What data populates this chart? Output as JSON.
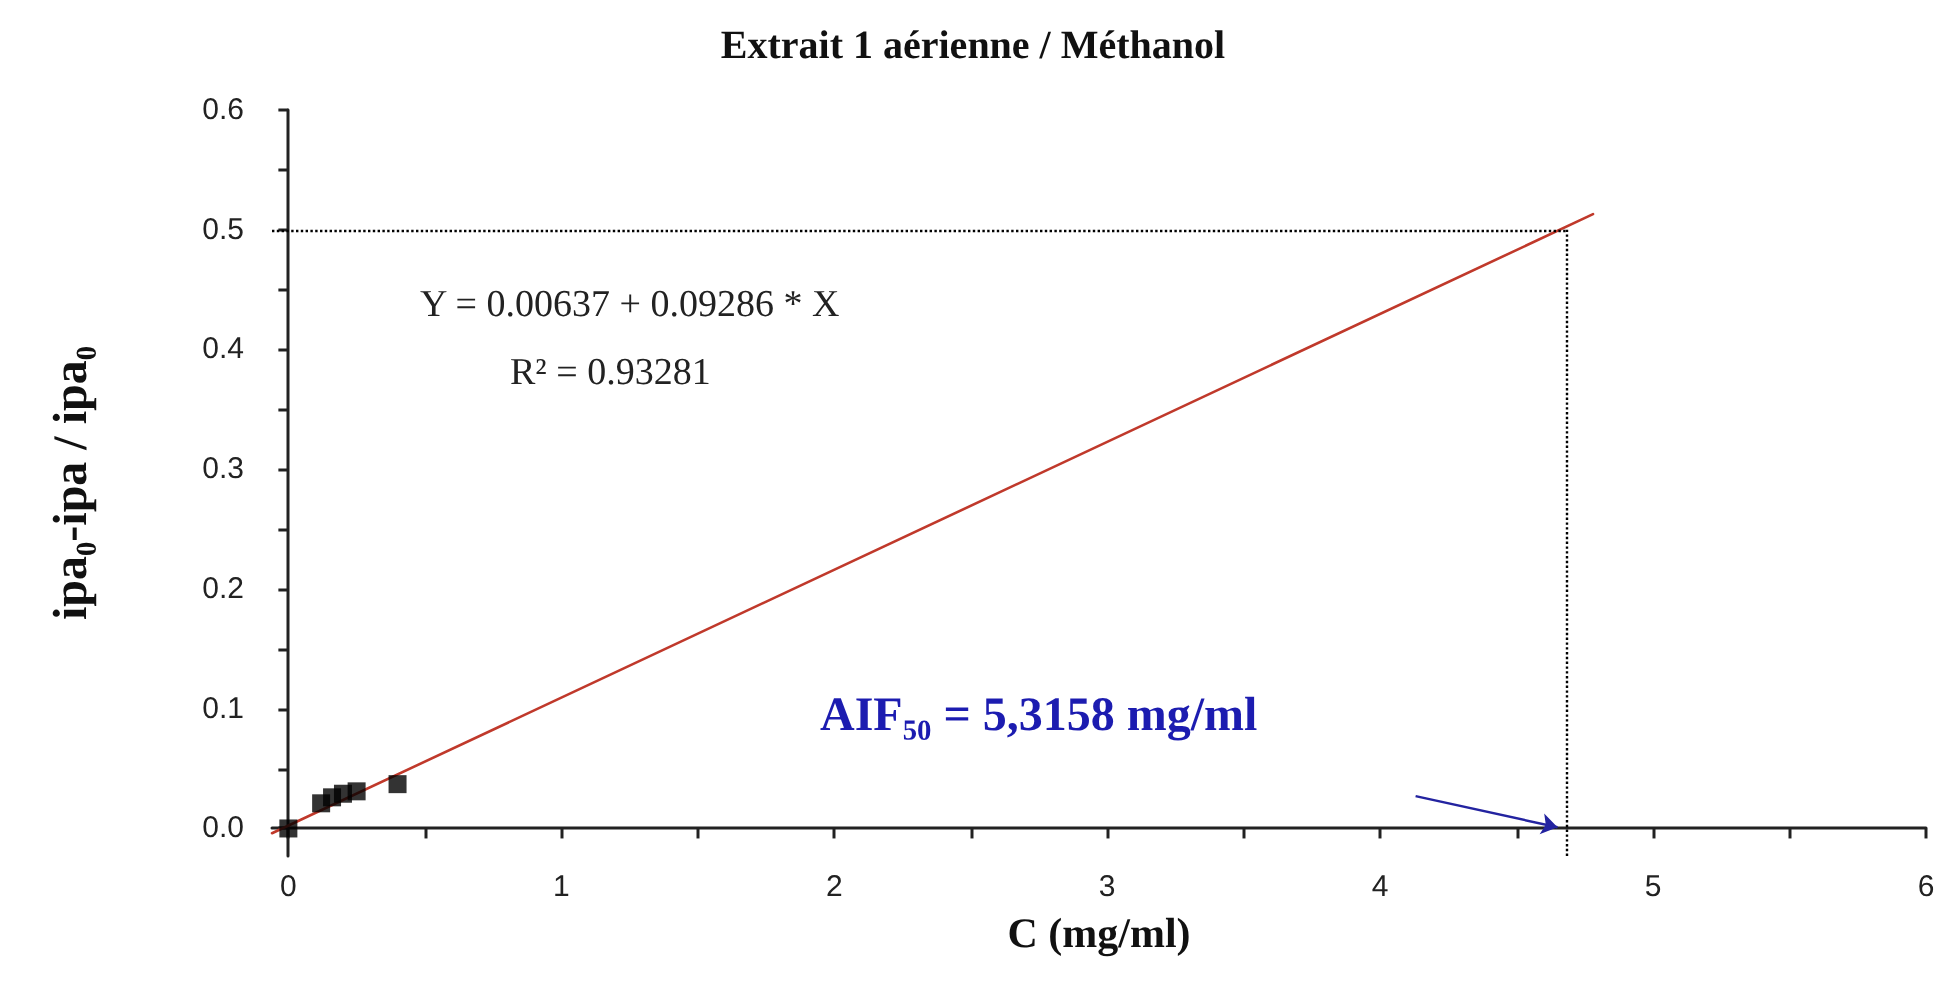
{
  "chart_data": {
    "type": "scatter",
    "title": "Extrait 1 aérienne / Méthanol",
    "xlabel": "C (mg/ml)",
    "ylabel": "ipa₀-ipa / ipa₀",
    "x": [
      0,
      0.12,
      0.16,
      0.2,
      0.25,
      0.4
    ],
    "series": [
      {
        "type": "scatter",
        "color": "#000000",
        "marker": "square",
        "values": [
          0,
          0.021,
          0.026,
          0.029,
          0.031,
          0.037
        ]
      },
      {
        "type": "line",
        "color": "#c0392b",
        "marker": "none",
        "line_style": "solid",
        "x": [
          -0.06,
          4.78
        ],
        "values": [
          -0.004,
          0.513
        ]
      }
    ],
    "xlim": [
      -0.06,
      6
    ],
    "xticks": [
      0,
      1,
      2,
      3,
      4,
      5,
      6
    ],
    "ylim": [
      -0.023,
      0.6
    ],
    "yticks": [
      {
        "value": 0,
        "label": "0.0"
      },
      0.1,
      0.2,
      0.3,
      0.4,
      0.5,
      0.6
    ],
    "ref_lines": [
      {
        "axis": "y",
        "value": 0.5,
        "color": "#000000",
        "line_style": "dotted"
      },
      {
        "axis": "x",
        "value": 4.68,
        "color": "#000000",
        "line_style": "dotted"
      }
    ],
    "annotations": [
      "Y = 0.00637 + 0.09286 * X",
      "R² = 0.93281",
      "AIF₅₀ = 5,3158 mg/ml"
    ],
    "grid": false
  }
}
